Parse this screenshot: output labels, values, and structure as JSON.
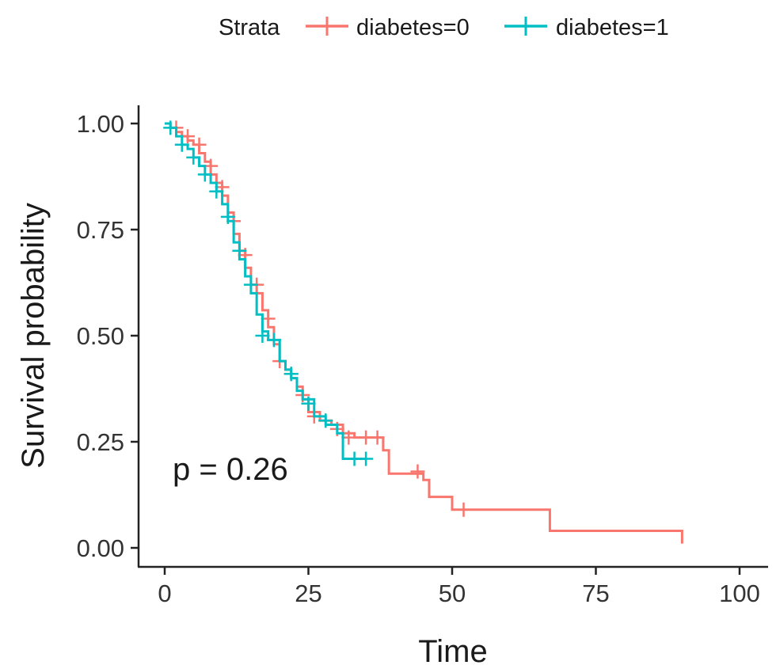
{
  "chart_data": {
    "type": "line",
    "subtype": "kaplan-meier step curve",
    "xlabel": "Time",
    "ylabel": "Survival probability",
    "xlim": [
      0,
      100
    ],
    "ylim": [
      0,
      1
    ],
    "x_ticks": [
      0,
      25,
      50,
      75,
      100
    ],
    "y_ticks": [
      0.0,
      0.25,
      0.5,
      0.75,
      1.0
    ],
    "x_tick_labels": [
      "0",
      "25",
      "50",
      "75",
      "100"
    ],
    "y_tick_labels": [
      "0.00",
      "0.25",
      "0.50",
      "0.75",
      "1.00"
    ],
    "grid": false,
    "legend_position": "top",
    "legend_title": "Strata",
    "annotation": "p = 0.26",
    "series": [
      {
        "name": "diabetes=0",
        "color": "#F8766D",
        "steps": [
          [
            0,
            1.0
          ],
          [
            1,
            0.99
          ],
          [
            2,
            0.98
          ],
          [
            3,
            0.97
          ],
          [
            4,
            0.96
          ],
          [
            5,
            0.95
          ],
          [
            6,
            0.93
          ],
          [
            7,
            0.91
          ],
          [
            8,
            0.88
          ],
          [
            9,
            0.86
          ],
          [
            10,
            0.83
          ],
          [
            11,
            0.79
          ],
          [
            12,
            0.74
          ],
          [
            13,
            0.7
          ],
          [
            14,
            0.66
          ],
          [
            15,
            0.62
          ],
          [
            16,
            0.6
          ],
          [
            17,
            0.56
          ],
          [
            18,
            0.52
          ],
          [
            19,
            0.48
          ],
          [
            20,
            0.44
          ],
          [
            21,
            0.42
          ],
          [
            22,
            0.4
          ],
          [
            23,
            0.38
          ],
          [
            24,
            0.35
          ],
          [
            25,
            0.32
          ],
          [
            27,
            0.3
          ],
          [
            29,
            0.29
          ],
          [
            31,
            0.27
          ],
          [
            33,
            0.26
          ],
          [
            38,
            0.23
          ],
          [
            39,
            0.175
          ],
          [
            45,
            0.16
          ],
          [
            46,
            0.12
          ],
          [
            50,
            0.09
          ],
          [
            67,
            0.04
          ],
          [
            90,
            0.01
          ]
        ],
        "censored": [
          [
            2,
            0.99
          ],
          [
            4,
            0.97
          ],
          [
            6,
            0.95
          ],
          [
            8,
            0.9
          ],
          [
            10,
            0.85
          ],
          [
            12,
            0.77
          ],
          [
            14,
            0.69
          ],
          [
            16,
            0.62
          ],
          [
            18,
            0.54
          ],
          [
            20,
            0.44
          ],
          [
            22,
            0.41
          ],
          [
            24,
            0.36
          ],
          [
            26,
            0.31
          ],
          [
            28,
            0.3
          ],
          [
            30,
            0.28
          ],
          [
            32,
            0.26
          ],
          [
            35,
            0.26
          ],
          [
            37,
            0.26
          ],
          [
            44,
            0.18
          ],
          [
            52,
            0.09
          ]
        ]
      },
      {
        "name": "diabetes=1",
        "color": "#00BFC4",
        "steps": [
          [
            0,
            1.0
          ],
          [
            1,
            0.99
          ],
          [
            2,
            0.97
          ],
          [
            3,
            0.95
          ],
          [
            4,
            0.94
          ],
          [
            5,
            0.92
          ],
          [
            6,
            0.9
          ],
          [
            7,
            0.88
          ],
          [
            8,
            0.86
          ],
          [
            9,
            0.84
          ],
          [
            10,
            0.81
          ],
          [
            11,
            0.77
          ],
          [
            12,
            0.72
          ],
          [
            13,
            0.68
          ],
          [
            14,
            0.64
          ],
          [
            15,
            0.6
          ],
          [
            16,
            0.55
          ],
          [
            17,
            0.51
          ],
          [
            18,
            0.49
          ],
          [
            20,
            0.44
          ],
          [
            21,
            0.42
          ],
          [
            22,
            0.4
          ],
          [
            23,
            0.37
          ],
          [
            24,
            0.35
          ],
          [
            26,
            0.31
          ],
          [
            28,
            0.29
          ],
          [
            30,
            0.27
          ],
          [
            31,
            0.21
          ],
          [
            35,
            0.21
          ]
        ],
        "censored": [
          [
            1,
            0.99
          ],
          [
            3,
            0.95
          ],
          [
            5,
            0.92
          ],
          [
            7,
            0.88
          ],
          [
            9,
            0.84
          ],
          [
            11,
            0.78
          ],
          [
            13,
            0.7
          ],
          [
            15,
            0.62
          ],
          [
            17,
            0.5
          ],
          [
            19,
            0.49
          ],
          [
            22,
            0.41
          ],
          [
            25,
            0.34
          ],
          [
            28,
            0.3
          ],
          [
            33,
            0.21
          ],
          [
            35,
            0.21
          ]
        ]
      }
    ]
  }
}
